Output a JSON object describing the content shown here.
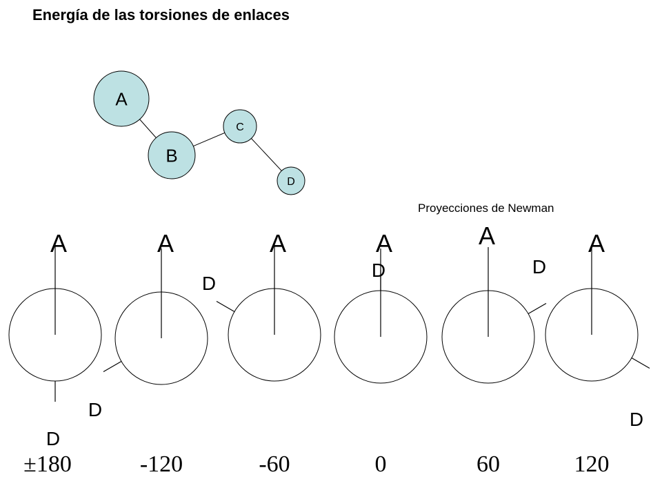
{
  "title": "Energía de las torsiones de enlaces",
  "caption": "Proyecciones de Newman",
  "molecule": {
    "atoms": [
      {
        "id": "A",
        "label": "A",
        "color": "#bde1e3"
      },
      {
        "id": "B",
        "label": "B",
        "color": "#bde1e3"
      },
      {
        "id": "C",
        "label": "C",
        "color": "#bde1e3"
      },
      {
        "id": "D",
        "label": "D",
        "color": "#bde1e3"
      }
    ],
    "bonds": [
      [
        "A",
        "B"
      ],
      [
        "B",
        "C"
      ],
      [
        "C",
        "D"
      ]
    ]
  },
  "projections": [
    {
      "angle_label": "±180",
      "dihedral_deg": 180,
      "front_label": "A",
      "back_label": "D"
    },
    {
      "angle_label": "-120",
      "dihedral_deg": -120,
      "front_label": "A",
      "back_label": "D"
    },
    {
      "angle_label": "-60",
      "dihedral_deg": -60,
      "front_label": "A",
      "back_label": "D"
    },
    {
      "angle_label": "0",
      "dihedral_deg": 0,
      "front_label": "A",
      "back_label": "D"
    },
    {
      "angle_label": "60",
      "dihedral_deg": 60,
      "front_label": "A",
      "back_label": "D"
    },
    {
      "angle_label": "120",
      "dihedral_deg": 120,
      "front_label": "A",
      "back_label": "D"
    }
  ]
}
